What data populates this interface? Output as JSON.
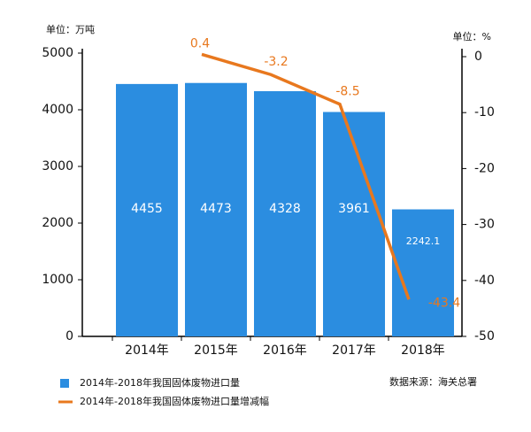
{
  "chart_data": {
    "type": "bar",
    "y_label": "单位：万吨",
    "y2_label": "单位：%",
    "source": "数据来源：海关总署",
    "categories": [
      "2014年",
      "2015年",
      "2016年",
      "2017年",
      "2018年"
    ],
    "series": [
      {
        "name": "2014年-2018年我国固体废物进口量",
        "type": "bar",
        "color": "#2b8de0",
        "values": [
          4455,
          4473,
          4328,
          3961,
          2242.1
        ]
      },
      {
        "name": "2014年-2018年我国固体废物进口量增减幅",
        "type": "line",
        "axis": "y2",
        "color": "#e8781e",
        "values": [
          null,
          0.4,
          -3.2,
          -8.5,
          -43.4
        ]
      }
    ],
    "ylim": [
      0,
      5000
    ],
    "yticks": [
      0,
      1000,
      2000,
      3000,
      4000,
      5000
    ],
    "y2lim": [
      -50,
      0
    ],
    "y2ticks": [
      0,
      -10,
      -20,
      -30,
      -40,
      -50
    ]
  }
}
